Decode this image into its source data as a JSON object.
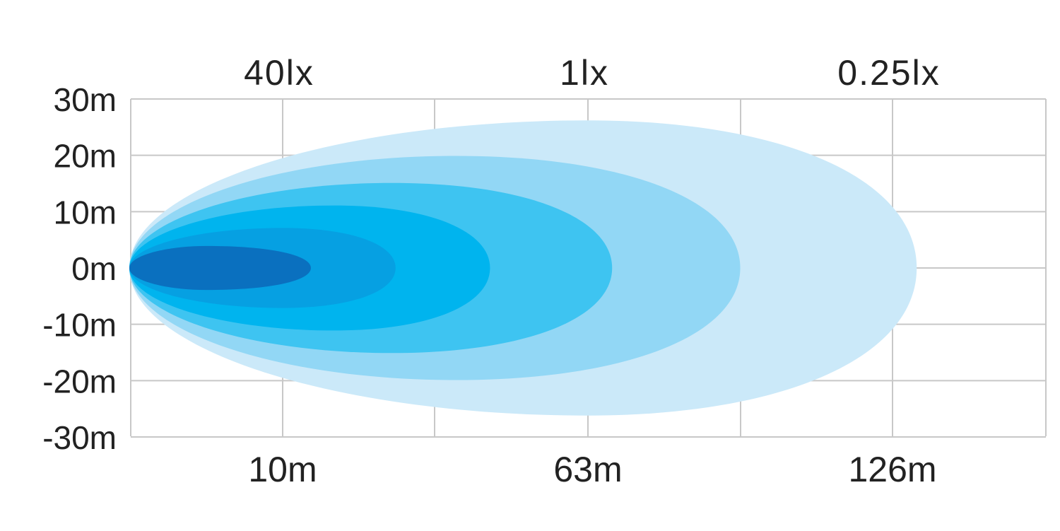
{
  "chart_data": {
    "type": "area",
    "title": "",
    "xlabel": "",
    "ylabel": "",
    "top_labels": [
      {
        "label": "40lx",
        "x": 10
      },
      {
        "label": "1lx",
        "x": 63
      },
      {
        "label": "0.25lx",
        "x": 126
      }
    ],
    "x_ticks": [
      {
        "label": "10m",
        "x": 10
      },
      {
        "label": "63m",
        "x": 63
      },
      {
        "label": "126m",
        "x": 126
      }
    ],
    "y_ticks": [
      {
        "label": "30m",
        "y": 30
      },
      {
        "label": "20m",
        "y": 20
      },
      {
        "label": "10m",
        "y": 10
      },
      {
        "label": "0m",
        "y": 0
      },
      {
        "label": "-10m",
        "y": -10
      },
      {
        "label": "-20m",
        "y": -20
      },
      {
        "label": "-30m",
        "y": -30
      }
    ],
    "ylim": [
      -30,
      30
    ],
    "grid": true,
    "contours": [
      {
        "reach_m": 131,
        "half_width_m": 26.2,
        "peak_m": 63,
        "color": "#cbe9f9"
      },
      {
        "reach_m": 94.5,
        "half_width_m": 19.9,
        "peak_m": 40,
        "color": "#92d7f5"
      },
      {
        "reach_m": 68,
        "half_width_m": 15.1,
        "peak_m": 29,
        "color": "#3ec4f1"
      },
      {
        "reach_m": 46,
        "half_width_m": 11.1,
        "peak_m": 19,
        "color": "#00b4ee"
      },
      {
        "reach_m": 29.6,
        "half_width_m": 7.1,
        "peak_m": 10,
        "color": "#06a0e2"
      },
      {
        "reach_m": 14.9,
        "half_width_m": 3.9,
        "peak_m": 5,
        "color": "#0a70bf"
      }
    ]
  }
}
